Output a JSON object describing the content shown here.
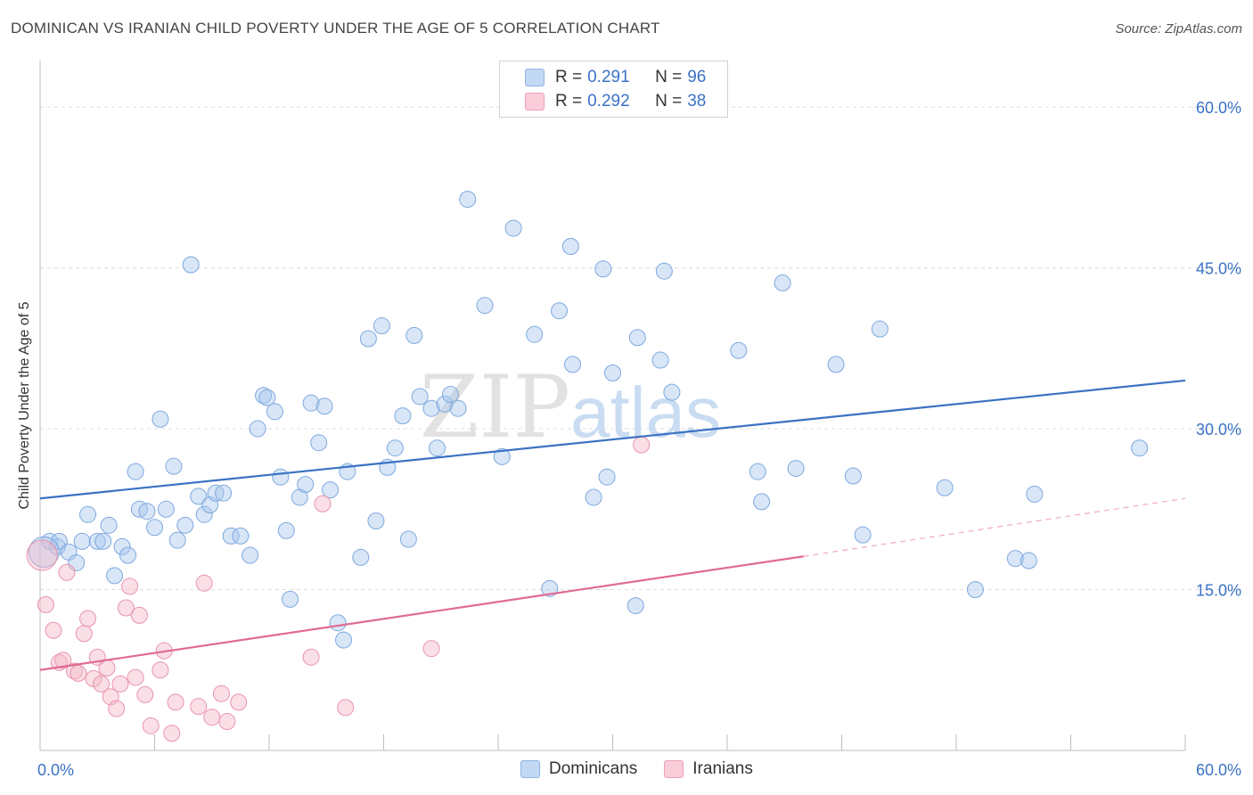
{
  "title": "DOMINICAN VS IRANIAN CHILD POVERTY UNDER THE AGE OF 5 CORRELATION CHART",
  "source": "Source: ZipAtlas.com",
  "watermark": {
    "zip": "ZIP",
    "atlas": "atlas"
  },
  "legend": {
    "r_label": "R =",
    "n_label": "N =",
    "rows": [
      {
        "r": "0.291",
        "n": "96",
        "color": "#a9c8ee"
      },
      {
        "r": "0.292",
        "n": "38",
        "color": "#f5b8c8"
      }
    ]
  },
  "colors": {
    "blue": "#3a72c4",
    "blue_fill": "#a9c8ee",
    "pink": "#e06a94",
    "pink_fill": "#f5b8c8",
    "tick_text": "#3a72c4"
  },
  "chart_data": {
    "type": "scatter",
    "ylabel": "Child Poverty Under the Age of 5",
    "xlim": [
      0,
      60
    ],
    "ylim": [
      0,
      60
    ],
    "x_tick_labels": [
      "0.0%",
      "60.0%"
    ],
    "y_ticks": [
      15,
      30,
      45,
      60
    ],
    "y_tick_labels": [
      "15.0%",
      "30.0%",
      "45.0%",
      "60.0%"
    ],
    "grid": true,
    "legend_position": "top-center",
    "series": [
      {
        "name": "Dominicans",
        "color": "#a9c8ee",
        "line_color": "#3a72c4",
        "trend": {
          "x": [
            0,
            60
          ],
          "y": [
            23.5,
            34.5
          ]
        },
        "points": [
          [
            0.5,
            19.5
          ],
          [
            0.9,
            19
          ],
          [
            1.0,
            19.5
          ],
          [
            1.5,
            18.5
          ],
          [
            1.9,
            17.5
          ],
          [
            2.2,
            19.5
          ],
          [
            2.5,
            22
          ],
          [
            3.0,
            19.5
          ],
          [
            3.3,
            19.5
          ],
          [
            3.6,
            21
          ],
          [
            3.9,
            16.3
          ],
          [
            4.3,
            19
          ],
          [
            4.6,
            18.2
          ],
          [
            5.0,
            26
          ],
          [
            5.2,
            22.5
          ],
          [
            5.6,
            22.3
          ],
          [
            6.0,
            20.8
          ],
          [
            6.3,
            30.9
          ],
          [
            6.6,
            22.5
          ],
          [
            7.0,
            26.5
          ],
          [
            7.2,
            19.6
          ],
          [
            7.6,
            21
          ],
          [
            7.9,
            45.3
          ],
          [
            8.3,
            23.7
          ],
          [
            8.6,
            22
          ],
          [
            8.9,
            22.9
          ],
          [
            9.2,
            24
          ],
          [
            9.6,
            24
          ],
          [
            10.0,
            20
          ],
          [
            10.5,
            20
          ],
          [
            11.0,
            18.2
          ],
          [
            11.4,
            30
          ],
          [
            11.7,
            33.1
          ],
          [
            11.9,
            32.9
          ],
          [
            12.3,
            31.6
          ],
          [
            12.6,
            25.5
          ],
          [
            12.9,
            20.5
          ],
          [
            13.1,
            14.1
          ],
          [
            13.6,
            23.6
          ],
          [
            13.9,
            24.8
          ],
          [
            14.2,
            32.4
          ],
          [
            14.6,
            28.7
          ],
          [
            14.9,
            32.1
          ],
          [
            15.2,
            24.3
          ],
          [
            15.6,
            11.9
          ],
          [
            15.9,
            10.3
          ],
          [
            16.1,
            26
          ],
          [
            16.8,
            18
          ],
          [
            17.2,
            38.4
          ],
          [
            17.6,
            21.4
          ],
          [
            17.9,
            39.6
          ],
          [
            18.2,
            26.4
          ],
          [
            18.6,
            28.2
          ],
          [
            19.0,
            31.2
          ],
          [
            19.3,
            19.7
          ],
          [
            19.6,
            38.7
          ],
          [
            19.9,
            33
          ],
          [
            20.5,
            31.9
          ],
          [
            20.8,
            28.2
          ],
          [
            21.2,
            32.3
          ],
          [
            21.5,
            33.2
          ],
          [
            21.9,
            31.9
          ],
          [
            22.4,
            51.4
          ],
          [
            23.3,
            41.5
          ],
          [
            24.2,
            27.4
          ],
          [
            24.8,
            48.7
          ],
          [
            25.9,
            38.8
          ],
          [
            26.7,
            15.1
          ],
          [
            27.2,
            41
          ],
          [
            27.8,
            47
          ],
          [
            27.9,
            36.0
          ],
          [
            29.0,
            23.6
          ],
          [
            29.5,
            44.9
          ],
          [
            29.7,
            25.5
          ],
          [
            30.0,
            35.2
          ],
          [
            31.2,
            13.5
          ],
          [
            31.3,
            38.5
          ],
          [
            32.5,
            36.4
          ],
          [
            32.7,
            44.7
          ],
          [
            33.1,
            33.4
          ],
          [
            36.6,
            37.3
          ],
          [
            37.6,
            26.0
          ],
          [
            37.8,
            23.2
          ],
          [
            38.9,
            43.6
          ],
          [
            39.6,
            26.3
          ],
          [
            41.7,
            36.0
          ],
          [
            42.6,
            25.6
          ],
          [
            43.1,
            20.1
          ],
          [
            44.0,
            39.3
          ],
          [
            47.4,
            24.5
          ],
          [
            49.0,
            15.0
          ],
          [
            51.1,
            17.9
          ],
          [
            51.8,
            17.7
          ],
          [
            52.1,
            23.9
          ],
          [
            57.6,
            28.2
          ],
          [
            0.2,
            18.5
          ]
        ]
      },
      {
        "name": "Iranians",
        "color": "#f5b8c8",
        "line_color": "#e06a94",
        "trend": {
          "x": [
            0,
            40
          ],
          "y": [
            7.5,
            18.1
          ]
        },
        "trend_dashed": {
          "x": [
            40,
            60
          ],
          "y": [
            18.1,
            23.5
          ]
        },
        "points": [
          [
            0.3,
            13.6
          ],
          [
            0.7,
            11.2
          ],
          [
            1.0,
            8.2
          ],
          [
            1.2,
            8.4
          ],
          [
            1.4,
            16.6
          ],
          [
            1.8,
            7.4
          ],
          [
            2.0,
            7.2
          ],
          [
            2.3,
            10.9
          ],
          [
            2.5,
            12.3
          ],
          [
            2.8,
            6.7
          ],
          [
            3.0,
            8.7
          ],
          [
            3.2,
            6.2
          ],
          [
            3.5,
            7.7
          ],
          [
            3.7,
            5.0
          ],
          [
            4.0,
            3.9
          ],
          [
            4.2,
            6.2
          ],
          [
            4.5,
            13.3
          ],
          [
            4.7,
            15.3
          ],
          [
            5.0,
            6.8
          ],
          [
            5.2,
            12.6
          ],
          [
            5.5,
            5.2
          ],
          [
            5.8,
            2.3
          ],
          [
            6.3,
            7.5
          ],
          [
            6.5,
            9.3
          ],
          [
            6.9,
            1.6
          ],
          [
            7.1,
            4.5
          ],
          [
            8.3,
            4.1
          ],
          [
            8.6,
            15.6
          ],
          [
            9.0,
            3.1
          ],
          [
            9.5,
            5.3
          ],
          [
            9.8,
            2.7
          ],
          [
            10.4,
            4.5
          ],
          [
            14.2,
            8.7
          ],
          [
            14.8,
            23.0
          ],
          [
            16.0,
            4.0
          ],
          [
            20.5,
            9.5
          ],
          [
            31.5,
            28.5
          ],
          [
            0.1,
            18.2
          ]
        ]
      }
    ]
  }
}
